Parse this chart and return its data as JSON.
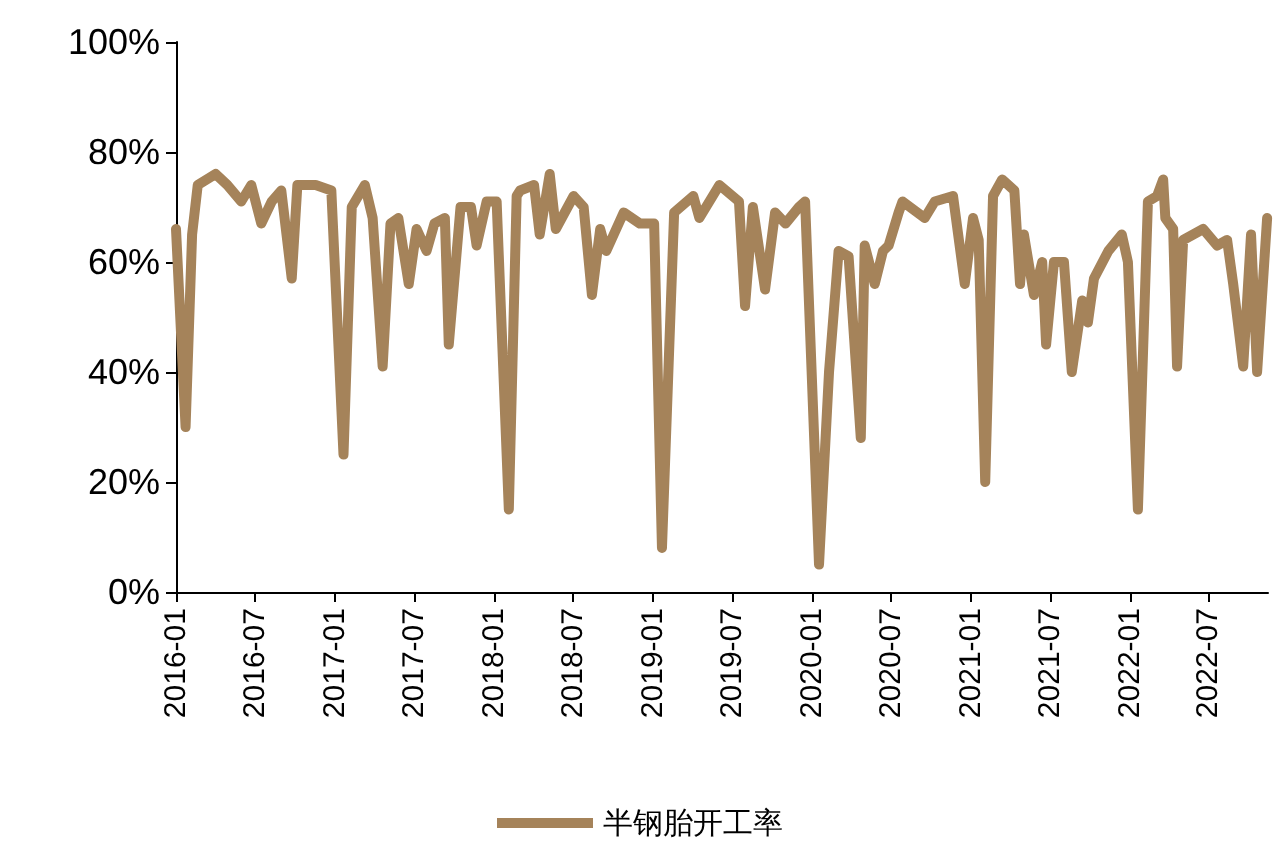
{
  "chart_data": {
    "type": "line",
    "legend": "bottom",
    "grid": false,
    "marker": "none",
    "line_style": "solid",
    "xlim": [
      "2016-01-01",
      "2022-11-15"
    ],
    "xticks": [
      "2016-01",
      "2016-07",
      "2017-01",
      "2017-07",
      "2018-01",
      "2018-07",
      "2019-01",
      "2019-07",
      "2020-01",
      "2020-07",
      "2021-01",
      "2021-07",
      "2022-01",
      "2022-07"
    ],
    "ylim": [
      0,
      100
    ],
    "yticks": [
      {
        "value": 0,
        "label": "0%"
      },
      {
        "value": 20,
        "label": "20%"
      },
      {
        "value": 40,
        "label": "40%"
      },
      {
        "value": 60,
        "label": "60%"
      },
      {
        "value": 80,
        "label": "80%"
      },
      {
        "value": 100,
        "label": "100%"
      }
    ],
    "series": [
      {
        "name": "半钢胎开工率",
        "color": "#a5835a",
        "x": [
          "2016-01-01",
          "2016-01-23",
          "2016-02-07",
          "2016-02-20",
          "2016-04-01",
          "2016-04-28",
          "2016-05-30",
          "2016-06-22",
          "2016-07-15",
          "2016-08-08",
          "2016-08-30",
          "2016-09-23",
          "2016-10-06",
          "2016-11-17",
          "2016-12-23",
          "2017-01-20",
          "2017-02-08",
          "2017-03-10",
          "2017-03-28",
          "2017-04-20",
          "2017-05-08",
          "2017-05-26",
          "2017-06-19",
          "2017-07-07",
          "2017-07-30",
          "2017-08-17",
          "2017-09-10",
          "2017-09-19",
          "2017-10-16",
          "2017-11-09",
          "2017-11-22",
          "2017-12-15",
          "2018-01-07",
          "2018-02-04",
          "2018-02-22",
          "2018-03-02",
          "2018-04-03",
          "2018-04-16",
          "2018-05-09",
          "2018-05-23",
          "2018-07-03",
          "2018-07-26",
          "2018-08-14",
          "2018-09-02",
          "2018-09-16",
          "2018-10-26",
          "2018-12-02",
          "2019-01-04",
          "2019-01-22",
          "2019-02-19",
          "2019-04-04",
          "2019-04-18",
          "2019-06-03",
          "2019-07-18",
          "2019-08-01",
          "2019-08-19",
          "2019-09-16",
          "2019-10-09",
          "2019-11-02",
          "2019-12-03",
          "2019-12-17",
          "2020-01-18",
          "2020-02-10",
          "2020-03-03",
          "2020-03-26",
          "2020-04-23",
          "2020-05-02",
          "2020-05-25",
          "2020-06-13",
          "2020-06-26",
          "2020-07-19",
          "2020-07-28",
          "2020-09-17",
          "2020-10-10",
          "2020-11-21",
          "2020-12-18",
          "2021-01-06",
          "2021-01-19",
          "2021-02-03",
          "2021-02-21",
          "2021-03-14",
          "2021-04-11",
          "2021-04-24",
          "2021-05-03",
          "2021-05-26",
          "2021-06-14",
          "2021-06-23",
          "2021-07-11",
          "2021-08-03",
          "2021-08-21",
          "2021-09-14",
          "2021-09-27",
          "2021-10-11",
          "2021-11-13",
          "2021-12-14",
          "2021-12-28",
          "2022-01-20",
          "2022-02-12",
          "2022-03-05",
          "2022-03-19",
          "2022-03-24",
          "2022-04-11",
          "2022-04-20",
          "2022-05-04",
          "2022-06-19",
          "2022-07-21",
          "2022-08-13",
          "2022-08-27",
          "2022-09-19",
          "2022-10-07",
          "2022-10-21",
          "2022-11-13"
        ],
        "values": [
          66,
          30,
          65,
          74,
          76,
          74,
          71,
          74,
          67,
          71,
          73,
          57,
          74,
          74,
          73,
          25,
          70,
          74,
          68,
          41,
          67,
          68,
          56,
          66,
          62,
          67,
          68,
          45,
          70,
          70,
          63,
          71,
          71,
          15,
          72,
          73,
          74,
          65,
          76,
          66,
          72,
          70,
          54,
          66,
          62,
          69,
          67,
          67,
          8,
          69,
          72,
          68,
          74,
          71,
          52,
          70,
          55,
          69,
          67,
          70,
          71,
          5,
          40,
          62,
          61,
          28,
          63,
          56,
          62,
          63,
          69,
          71,
          68,
          71,
          72,
          56,
          68,
          64,
          20,
          72,
          75,
          73,
          56,
          65,
          54,
          60,
          45,
          60,
          60,
          40,
          53,
          49,
          57,
          62,
          65,
          60,
          15,
          71,
          72,
          75,
          68,
          66,
          41,
          64,
          66,
          63,
          64,
          56,
          41,
          65,
          40,
          68
        ]
      }
    ]
  }
}
